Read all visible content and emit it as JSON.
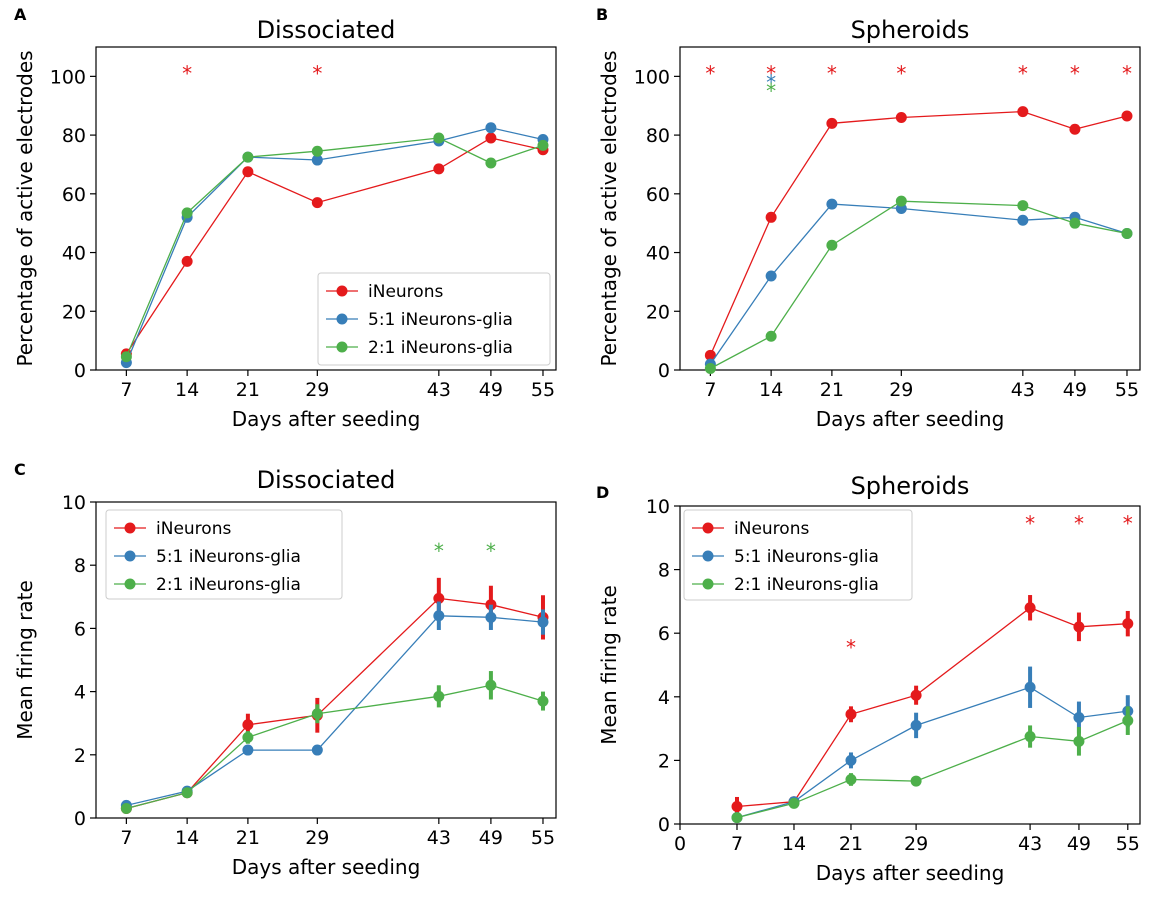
{
  "figure": {
    "colors": {
      "iNeurons": "#e41a1c",
      "glia51": "#377eb8",
      "glia21": "#4daf4a",
      "axis": "#000000"
    },
    "legend_labels": [
      "iNeurons",
      "5:1 iNeurons-glia",
      "2:1 iNeurons-glia"
    ]
  },
  "chart_data": [
    {
      "panel": "A",
      "type": "line",
      "title": "Dissociated",
      "xlabel": "Days after seeding",
      "ylabel": "Percentage of active electrodes",
      "xticks": [
        7,
        14,
        21,
        29,
        43,
        49,
        55
      ],
      "yticks": [
        0,
        20,
        40,
        60,
        80,
        100
      ],
      "xlim": [
        3.5,
        56.5
      ],
      "ylim": [
        0,
        110
      ],
      "legend": "lower-right",
      "x": [
        7,
        14,
        21,
        29,
        43,
        49,
        55
      ],
      "series": [
        {
          "name": "iNeurons",
          "color": "#e41a1c",
          "values": [
            5.5,
            37,
            67.5,
            57,
            68.5,
            79,
            75
          ]
        },
        {
          "name": "5:1 iNeurons-glia",
          "color": "#377eb8",
          "values": [
            2.5,
            52,
            72.5,
            71.5,
            78,
            82.5,
            78.5
          ]
        },
        {
          "name": "2:1 iNeurons-glia",
          "color": "#4daf4a",
          "values": [
            4.5,
            53.5,
            72.5,
            74.5,
            79,
            70.5,
            76.5
          ]
        }
      ],
      "significance": [
        {
          "x": 14,
          "y": 102,
          "color": "#e41a1c",
          "label": "*"
        },
        {
          "x": 29,
          "y": 102,
          "color": "#e41a1c",
          "label": "*"
        }
      ]
    },
    {
      "panel": "B",
      "type": "line",
      "title": "Spheroids",
      "xlabel": "Days after seeding",
      "ylabel": "Percentage of active electrodes",
      "xticks": [
        7,
        14,
        21,
        29,
        43,
        49,
        55
      ],
      "yticks": [
        0,
        20,
        40,
        60,
        80,
        100
      ],
      "xlim": [
        3.5,
        56.5
      ],
      "ylim": [
        0,
        110
      ],
      "legend": "none",
      "x": [
        7,
        14,
        21,
        29,
        43,
        49,
        55
      ],
      "series": [
        {
          "name": "iNeurons",
          "color": "#e41a1c",
          "values": [
            5,
            52,
            84,
            86,
            88,
            82,
            86.5
          ]
        },
        {
          "name": "5:1 iNeurons-glia",
          "color": "#377eb8",
          "values": [
            2,
            32,
            56.5,
            55,
            51,
            52,
            46.5
          ]
        },
        {
          "name": "2:1 iNeurons-glia",
          "color": "#4daf4a",
          "values": [
            0.5,
            11.5,
            42.5,
            57.5,
            56,
            50,
            46.5
          ]
        }
      ],
      "significance": [
        {
          "x": 7,
          "y": 102,
          "color": "#e41a1c",
          "label": "*"
        },
        {
          "x": 14,
          "y": 102,
          "color": "#e41a1c",
          "label": "*"
        },
        {
          "x": 14,
          "y": 99,
          "color": "#377eb8",
          "label": "*"
        },
        {
          "x": 14,
          "y": 96,
          "color": "#4daf4a",
          "label": "*"
        },
        {
          "x": 21,
          "y": 102,
          "color": "#e41a1c",
          "label": "*"
        },
        {
          "x": 29,
          "y": 102,
          "color": "#e41a1c",
          "label": "*"
        },
        {
          "x": 43,
          "y": 102,
          "color": "#e41a1c",
          "label": "*"
        },
        {
          "x": 49,
          "y": 102,
          "color": "#e41a1c",
          "label": "*"
        },
        {
          "x": 55,
          "y": 102,
          "color": "#e41a1c",
          "label": "*"
        }
      ]
    },
    {
      "panel": "C",
      "type": "line",
      "title": "Dissociated",
      "xlabel": "Days after seeding",
      "ylabel": "Mean firing rate",
      "xticks": [
        7,
        14,
        21,
        29,
        43,
        49,
        55
      ],
      "yticks": [
        0,
        2,
        4,
        6,
        8,
        10
      ],
      "xlim": [
        3.5,
        56.5
      ],
      "ylim": [
        0,
        10
      ],
      "legend": "upper-left",
      "x": [
        7,
        14,
        21,
        29,
        43,
        49,
        55
      ],
      "series": [
        {
          "name": "iNeurons",
          "color": "#e41a1c",
          "values": [
            0.3,
            0.8,
            2.95,
            3.25,
            6.95,
            6.75,
            6.35
          ],
          "errors": [
            0.1,
            0.1,
            0.35,
            0.55,
            0.65,
            0.6,
            0.7
          ]
        },
        {
          "name": "5:1 iNeurons-glia",
          "color": "#377eb8",
          "values": [
            0.4,
            0.85,
            2.15,
            2.15,
            6.4,
            6.35,
            6.2
          ],
          "errors": [
            0.1,
            0.1,
            0.1,
            0.1,
            0.45,
            0.4,
            0.4
          ]
        },
        {
          "name": "2:1 iNeurons-glia",
          "color": "#4daf4a",
          "values": [
            0.3,
            0.8,
            2.55,
            3.3,
            3.85,
            4.2,
            3.7
          ],
          "errors": [
            0.1,
            0.1,
            0.2,
            0.3,
            0.35,
            0.45,
            0.3
          ]
        }
      ],
      "significance": [
        {
          "x": 43,
          "y": 8.55,
          "color": "#4daf4a",
          "label": "*"
        },
        {
          "x": 49,
          "y": 8.55,
          "color": "#4daf4a",
          "label": "*"
        }
      ]
    },
    {
      "panel": "D",
      "type": "line",
      "title": "Spheroids",
      "xlabel": "Days after seeding",
      "ylabel": "Mean firing rate",
      "xticks": [
        0,
        7,
        14,
        21,
        29,
        43,
        49,
        55
      ],
      "yticks": [
        0,
        2,
        4,
        6,
        8,
        10
      ],
      "xlim": [
        0,
        56.5
      ],
      "ylim": [
        0,
        10
      ],
      "legend": "upper-left",
      "x": [
        7,
        14,
        21,
        29,
        43,
        49,
        55
      ],
      "series": [
        {
          "name": "iNeurons",
          "color": "#e41a1c",
          "values": [
            0.55,
            0.7,
            3.45,
            4.05,
            6.8,
            6.2,
            6.3
          ],
          "errors": [
            0.3,
            0.1,
            0.25,
            0.3,
            0.4,
            0.45,
            0.4
          ]
        },
        {
          "name": "5:1 iNeurons-glia",
          "color": "#377eb8",
          "values": [
            0.2,
            0.7,
            2.0,
            3.1,
            4.3,
            3.35,
            3.55
          ],
          "errors": [
            0.1,
            0.1,
            0.25,
            0.4,
            0.65,
            0.5,
            0.5
          ]
        },
        {
          "name": "2:1 iNeurons-glia",
          "color": "#4daf4a",
          "values": [
            0.2,
            0.65,
            1.4,
            1.35,
            2.75,
            2.6,
            3.25
          ],
          "errors": [
            0.1,
            0.1,
            0.2,
            0.15,
            0.35,
            0.45,
            0.45
          ]
        }
      ],
      "significance": [
        {
          "x": 21,
          "y": 5.65,
          "color": "#e41a1c",
          "label": "*"
        },
        {
          "x": 43,
          "y": 9.55,
          "color": "#e41a1c",
          "label": "*"
        },
        {
          "x": 49,
          "y": 9.55,
          "color": "#e41a1c",
          "label": "*"
        },
        {
          "x": 55,
          "y": 9.55,
          "color": "#e41a1c",
          "label": "*"
        }
      ]
    }
  ]
}
